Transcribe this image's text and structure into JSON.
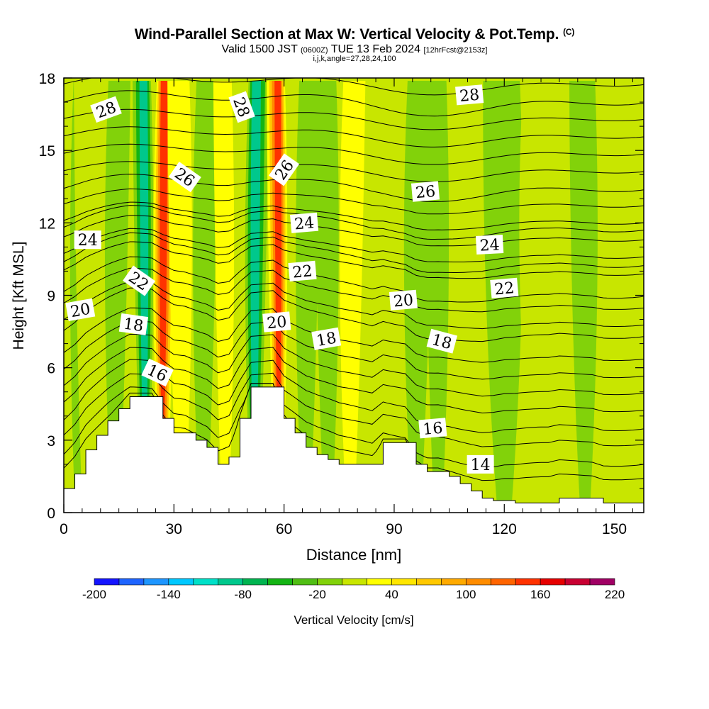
{
  "header": {
    "title": "Wind-Parallel Section at Max W: Vertical Velocity & Pot.Temp.",
    "copyright": "(C)",
    "valid_prefix": "Valid 1500 JST",
    "valid_utc": "(0600Z)",
    "valid_date": "TUE 13 Feb 2024",
    "forecast": "[12hrFcst@2153z]",
    "indices": "i,j,k,angle=27,28,24,100"
  },
  "chart_data": {
    "type": "heatmap",
    "xlabel": "Distance [nm]",
    "ylabel": "Height [Kft MSL]",
    "xlim": [
      0,
      158
    ],
    "ylim": [
      0,
      18
    ],
    "x_ticks": [
      0,
      30,
      60,
      90,
      120,
      150
    ],
    "y_ticks": [
      0,
      3,
      6,
      9,
      12,
      15,
      18
    ],
    "colorbar": {
      "label": "Vertical Velocity [cm/s]",
      "tick_labels": [
        "-200",
        "-140",
        "-80",
        "-20",
        "40",
        "100",
        "160",
        "220"
      ],
      "tick_values": [
        -200,
        -140,
        -80,
        -20,
        40,
        100,
        160,
        220
      ],
      "bins": [
        -200,
        -180,
        -160,
        -140,
        -120,
        -100,
        -80,
        -60,
        -40,
        -20,
        0,
        20,
        40,
        60,
        80,
        100,
        120,
        140,
        160,
        180,
        200,
        220
      ],
      "colors": [
        "#1414ff",
        "#1e64ff",
        "#1e96ff",
        "#00c8ff",
        "#00e0c8",
        "#00c88c",
        "#00b450",
        "#14b414",
        "#50be14",
        "#82d20a",
        "#c8e600",
        "#ffff00",
        "#ffe600",
        "#ffc800",
        "#ffaa00",
        "#ff8c00",
        "#ff6400",
        "#ff3200",
        "#e60000",
        "#c80032",
        "#a00064",
        "#5a0096"
      ]
    },
    "vertical_velocity_bands": [
      {
        "x": 4,
        "w": 2.5,
        "value": -30
      },
      {
        "x": 6,
        "w": 2.5,
        "value": 5
      },
      {
        "x": 14,
        "w": 3,
        "value": -50
      },
      {
        "x": 22,
        "w": 2.5,
        "value": -110
      },
      {
        "x": 27,
        "w": 2.8,
        "value": 140
      },
      {
        "x": 32,
        "w": 3,
        "value": 30
      },
      {
        "x": 38,
        "w": 3,
        "value": -25
      },
      {
        "x": 44,
        "w": 2.5,
        "value": 30
      },
      {
        "x": 52,
        "w": 2.8,
        "value": -130
      },
      {
        "x": 58.5,
        "w": 2.5,
        "value": 150
      },
      {
        "x": 66,
        "w": 3,
        "value": -50
      },
      {
        "x": 72,
        "w": 3,
        "value": -20
      },
      {
        "x": 78,
        "w": 3,
        "value": 50
      },
      {
        "x": 88,
        "w": 5,
        "value": 15
      },
      {
        "x": 96,
        "w": 3.5,
        "value": -20
      },
      {
        "x": 102,
        "w": 3,
        "value": -35
      },
      {
        "x": 110,
        "w": 4,
        "value": 15
      },
      {
        "x": 120,
        "w": 5,
        "value": -15
      },
      {
        "x": 130,
        "w": 6,
        "value": 15
      },
      {
        "x": 142,
        "w": 3.5,
        "value": -20
      },
      {
        "x": 150,
        "w": 4,
        "value": 10
      }
    ],
    "terrain_profile": {
      "x": [
        0,
        3,
        6,
        9,
        12,
        15,
        18,
        21,
        24,
        27,
        30,
        33,
        36,
        39,
        42,
        45,
        48,
        51,
        54,
        57,
        60,
        63,
        66,
        69,
        72,
        75,
        78,
        81,
        84,
        87,
        90,
        93,
        96,
        99,
        102,
        105,
        108,
        111,
        114,
        117,
        120,
        123,
        126,
        129,
        132,
        135,
        138,
        141,
        144,
        147,
        150,
        153,
        156,
        158
      ],
      "height_kft": [
        1.0,
        1.6,
        2.6,
        3.2,
        3.8,
        4.3,
        4.8,
        4.8,
        4.8,
        3.9,
        3.3,
        3.3,
        3.0,
        2.7,
        2.0,
        2.3,
        3.9,
        5.2,
        5.2,
        5.2,
        3.9,
        3.3,
        2.7,
        2.4,
        2.2,
        2.0,
        2.0,
        2.0,
        2.0,
        2.9,
        2.9,
        2.9,
        2.0,
        1.7,
        1.7,
        1.5,
        1.2,
        0.9,
        0.6,
        0.5,
        0.5,
        0.4,
        0.4,
        0.4,
        0.4,
        0.6,
        0.6,
        0.6,
        0.6,
        0.4,
        0.4,
        0.4,
        0.4,
        0.4
      ]
    },
    "pot_temp_contours": [
      {
        "theta": 14,
        "base": 1.8
      },
      {
        "theta": 16,
        "base": 3.3
      },
      {
        "theta": 18,
        "base": 7.2
      },
      {
        "theta": 20,
        "base": 8.9
      },
      {
        "theta": 22,
        "base": 10.2
      },
      {
        "theta": 24,
        "base": 11.7
      },
      {
        "theta": 26,
        "base": 13.4
      },
      {
        "theta": 28,
        "base": 17.0
      }
    ],
    "contour_labels": [
      {
        "text": "28",
        "x": 11.5,
        "y": 16.7,
        "rot": -20
      },
      {
        "text": "28",
        "x": 48.5,
        "y": 16.8,
        "rot": 70
      },
      {
        "text": "28",
        "x": 110.5,
        "y": 17.3,
        "rot": -5
      },
      {
        "text": "26",
        "x": 33,
        "y": 13.9,
        "rot": 35
      },
      {
        "text": "26",
        "x": 60,
        "y": 14.2,
        "rot": -55
      },
      {
        "text": "26",
        "x": 98.5,
        "y": 13.3,
        "rot": -5
      },
      {
        "text": "24",
        "x": 6.5,
        "y": 11.3,
        "rot": 0
      },
      {
        "text": "24",
        "x": 65.5,
        "y": 12.0,
        "rot": -5
      },
      {
        "text": "24",
        "x": 116,
        "y": 11.1,
        "rot": -3
      },
      {
        "text": "22",
        "x": 20.5,
        "y": 9.6,
        "rot": 35
      },
      {
        "text": "22",
        "x": 65,
        "y": 10.0,
        "rot": -5
      },
      {
        "text": "22",
        "x": 120,
        "y": 9.3,
        "rot": -5
      },
      {
        "text": "20",
        "x": 4.5,
        "y": 8.4,
        "rot": -10
      },
      {
        "text": "20",
        "x": 58,
        "y": 7.9,
        "rot": -5
      },
      {
        "text": "20",
        "x": 92.5,
        "y": 8.8,
        "rot": -5
      },
      {
        "text": "18",
        "x": 19,
        "y": 7.8,
        "rot": 8
      },
      {
        "text": "18",
        "x": 71.5,
        "y": 7.2,
        "rot": -10
      },
      {
        "text": "18",
        "x": 103,
        "y": 7.1,
        "rot": 15
      },
      {
        "text": "16",
        "x": 25.5,
        "y": 5.8,
        "rot": 25
      },
      {
        "text": "16",
        "x": 100.5,
        "y": 3.5,
        "rot": -5
      },
      {
        "text": "14",
        "x": 113.5,
        "y": 2.0,
        "rot": 0
      }
    ]
  }
}
